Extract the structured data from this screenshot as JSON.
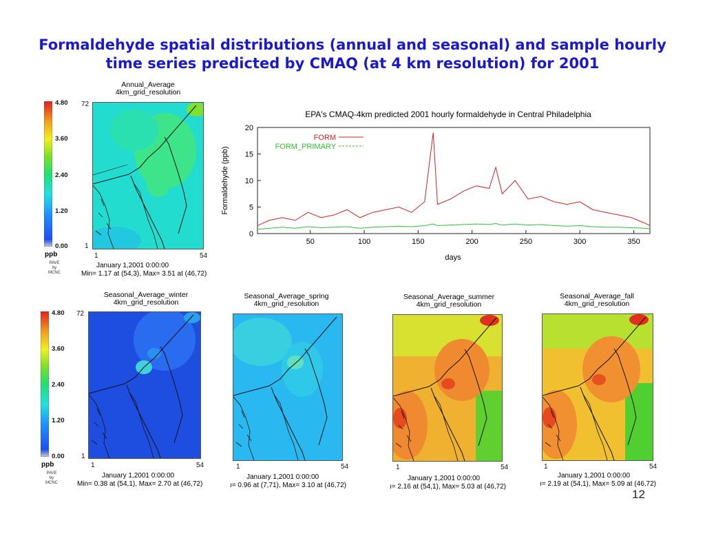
{
  "slide": {
    "title_line1": "Formaldehyde spatial distributions (annual and seasonal) and sample hourly",
    "title_line2": "time series predicted by CMAQ (at 4 km resolution) for 2001",
    "page_number": "12"
  },
  "colorbar": {
    "labels": [
      "4.80",
      "3.60",
      "2.40",
      "1.20",
      "0.00"
    ],
    "unit": "ppb",
    "credit": [
      "PAVE",
      "by",
      "MCNC"
    ]
  },
  "maps": [
    {
      "title_line1": "Annual_Average",
      "title_line2": "4km_grid_resolution",
      "y_top": "72",
      "y_bottom": "1",
      "x_left": "1",
      "x_right": "54",
      "date": "January 1,2001 0:00:00",
      "minmax": "Min= 1.17 at (54,3), Max= 3.51 at (46,72)",
      "min_value": 1.17,
      "max_value": 3.51
    },
    {
      "title_line1": "Seasonal_Average_winter",
      "title_line2": "4km_grid_resolution",
      "y_top": "72",
      "y_bottom": "1",
      "x_left": "1",
      "x_right": "54",
      "date": "January 1,2001 0:00:00",
      "minmax": "Min= 0.38 at (54,1), Max= 2.70 at (46,72)",
      "min_value": 0.38,
      "max_value": 2.7
    },
    {
      "title_line1": "Seasonal_Average_spring",
      "title_line2": "4km_grid_resolution",
      "x_left": "1",
      "x_right": "54",
      "date": "January 1,2001 0:00:00",
      "minmax": "ı= 0.96 at (7,71), Max= 3.10 at (46,72)",
      "min_value": 0.96,
      "max_value": 3.1
    },
    {
      "title_line1": "Seasonal_Average_summer",
      "title_line2": "4km_grid_resolution",
      "x_left": "1",
      "x_right": "54",
      "date": "January 1,2001 0:00:00",
      "minmax": "ı= 2.16 at (54,1), Max= 5.03 at (46,72)",
      "min_value": 2.16,
      "max_value": 5.03
    },
    {
      "title_line1": "Seasonal_Average_fall",
      "title_line2": "4km_grid_resolution",
      "x_left": "1",
      "x_right": "54",
      "date": "January 1,2001 0:00:00",
      "minmax": "ı= 2.19 at (54,1), Max= 5.09 at (46,72)",
      "min_value": 2.19,
      "max_value": 5.09
    }
  ],
  "chart_data": {
    "type": "line",
    "title": "EPA's CMAQ-4km predicted 2001 hourly formaldehyde in Central Philadelphia",
    "xlabel": "days",
    "ylabel": "Formaldehyde (ppb)",
    "xlim": [
      1,
      365
    ],
    "ylim": [
      0,
      20
    ],
    "x_ticks": [
      50,
      100,
      150,
      200,
      250,
      300,
      350
    ],
    "y_ticks": [
      0,
      5,
      10,
      15,
      20
    ],
    "legend": "top-left",
    "x": [
      1,
      12,
      24,
      36,
      48,
      60,
      72,
      84,
      96,
      108,
      120,
      132,
      144,
      156,
      164,
      168,
      180,
      192,
      204,
      216,
      222,
      228,
      240,
      252,
      264,
      276,
      288,
      300,
      312,
      324,
      336,
      348,
      360,
      365
    ],
    "series": [
      {
        "name": "FORM",
        "color": "#d42020",
        "values": [
          1.5,
          2.5,
          3.0,
          2.5,
          4.0,
          3.0,
          3.5,
          4.5,
          3.0,
          4.0,
          4.5,
          5.0,
          4.0,
          6.0,
          19.0,
          5.5,
          6.5,
          8.0,
          9.0,
          8.5,
          12.5,
          7.5,
          10.0,
          6.5,
          7.0,
          6.0,
          5.5,
          6.0,
          4.5,
          4.0,
          3.5,
          3.0,
          2.0,
          1.5
        ]
      },
      {
        "name": "FORM_PRIMARY",
        "color": "#30c030",
        "values": [
          0.8,
          1.0,
          1.2,
          1.0,
          1.3,
          1.1,
          1.2,
          1.3,
          1.0,
          1.2,
          1.3,
          1.4,
          1.3,
          1.5,
          1.8,
          1.5,
          1.6,
          1.7,
          1.8,
          1.7,
          1.9,
          1.6,
          1.8,
          1.6,
          1.7,
          1.5,
          1.4,
          1.5,
          1.3,
          1.2,
          1.2,
          1.1,
          1.0,
          0.9
        ]
      }
    ]
  }
}
